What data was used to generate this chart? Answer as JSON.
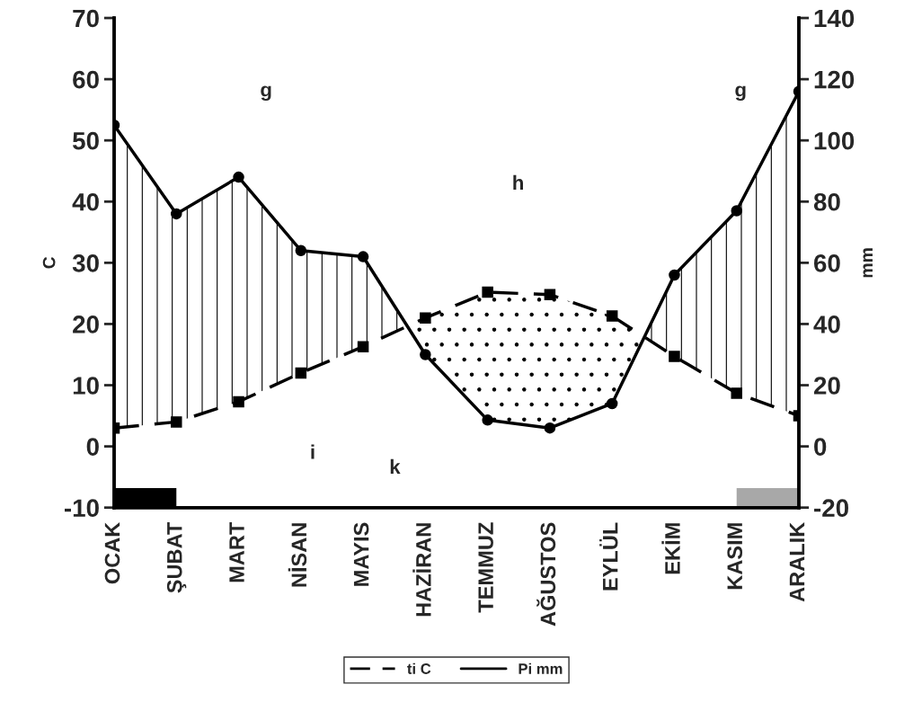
{
  "chart_data": {
    "type": "line",
    "ylabel": "C",
    "y2label": "mm",
    "categories": [
      "OCAK",
      "ŞUBAT",
      "MART",
      "NİSAN",
      "MAYIS",
      "HAZİRAN",
      "TEMMUZ",
      "AĞUSTOS",
      "EYLÜL",
      "EKİM",
      "KASIM",
      "ARALIK"
    ],
    "series": [
      {
        "name": "ti C",
        "color": "#000000",
        "line_style": "dashed",
        "marker": "square",
        "values": [
          3,
          4,
          7.3,
          12,
          16.3,
          21,
          25.2,
          24.8,
          21.3,
          14.7,
          8.7,
          5
        ]
      },
      {
        "name": "Pi mm",
        "color": "#000000",
        "line_style": "solid",
        "marker": "circle",
        "axis": "y2",
        "values": [
          105,
          76,
          88,
          64,
          62,
          30,
          8.6,
          6,
          14,
          56,
          77,
          116
        ]
      }
    ],
    "ylim": [
      -10,
      70
    ],
    "yticks": [
      -10,
      0,
      10,
      20,
      30,
      40,
      50,
      60,
      70
    ],
    "y2lim": [
      -20,
      140
    ],
    "y2ticks": [
      -20,
      0,
      20,
      40,
      60,
      80,
      100,
      120,
      140
    ],
    "annotations": [
      "g",
      "g",
      "h",
      "i",
      "k"
    ],
    "legend": "bottom",
    "grid": false
  }
}
